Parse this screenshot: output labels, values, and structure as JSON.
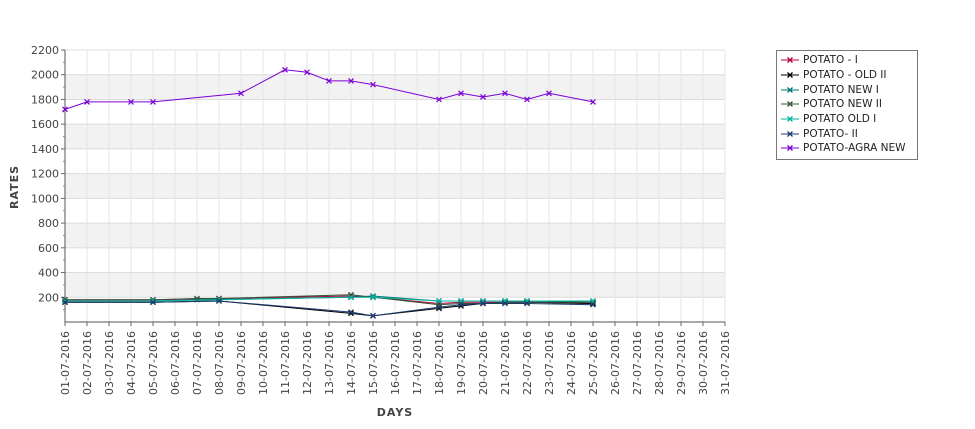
{
  "chart_data": {
    "type": "line",
    "xlabel": "DAYS",
    "ylabel": "RATES",
    "ylim": [
      0,
      2200
    ],
    "yticks": [
      200,
      400,
      600,
      800,
      1000,
      1200,
      1400,
      1600,
      1800,
      2000,
      2200
    ],
    "grid": true,
    "legend_position": "right",
    "categories": [
      "01-07-2016",
      "02-07-2016",
      "03-07-2016",
      "04-07-2016",
      "05-07-2016",
      "06-07-2016",
      "07-07-2016",
      "08-07-2016",
      "09-07-2016",
      "10-07-2016",
      "11-07-2016",
      "12-07-2016",
      "13-07-2016",
      "14-07-2016",
      "15-07-2016",
      "16-07-2016",
      "17-07-2016",
      "18-07-2016",
      "19-07-2016",
      "20-07-2016",
      "21-07-2016",
      "22-07-2016",
      "23-07-2016",
      "24-07-2016",
      "25-07-2016",
      "26-07-2016",
      "27-07-2016",
      "28-07-2016",
      "29-07-2016",
      "30-07-2016",
      "31-07-2016"
    ],
    "series": [
      {
        "name": "POTATO - I",
        "color": "#b3003c",
        "points": [
          [
            "01-07-2016",
            180
          ],
          [
            "05-07-2016",
            180
          ],
          [
            "08-07-2016",
            190
          ],
          [
            "14-07-2016",
            210
          ],
          [
            "15-07-2016",
            200
          ],
          [
            "18-07-2016",
            150
          ],
          [
            "19-07-2016",
            160
          ],
          [
            "20-07-2016",
            160
          ],
          [
            "21-07-2016",
            160
          ],
          [
            "22-07-2016",
            160
          ],
          [
            "25-07-2016",
            150
          ]
        ]
      },
      {
        "name": "POTATO - OLD II",
        "color": "#000000",
        "points": [
          [
            "01-07-2016",
            160
          ],
          [
            "05-07-2016",
            160
          ],
          [
            "08-07-2016",
            170
          ],
          [
            "14-07-2016",
            70
          ],
          [
            "15-07-2016",
            50
          ],
          [
            "18-07-2016",
            110
          ],
          [
            "19-07-2016",
            130
          ],
          [
            "20-07-2016",
            150
          ],
          [
            "21-07-2016",
            160
          ],
          [
            "22-07-2016",
            160
          ],
          [
            "25-07-2016",
            150
          ]
        ]
      },
      {
        "name": "POTATO NEW I",
        "color": "#007575",
        "points": [
          [
            "01-07-2016",
            170
          ],
          [
            "05-07-2016",
            170
          ],
          [
            "07-07-2016",
            180
          ],
          [
            "14-07-2016",
            200
          ],
          [
            "15-07-2016",
            210
          ],
          [
            "18-07-2016",
            170
          ],
          [
            "19-07-2016",
            170
          ],
          [
            "20-07-2016",
            170
          ],
          [
            "21-07-2016",
            170
          ],
          [
            "22-07-2016",
            170
          ],
          [
            "25-07-2016",
            160
          ]
        ]
      },
      {
        "name": "POTATO NEW II",
        "color": "#335533",
        "points": [
          [
            "01-07-2016",
            180
          ],
          [
            "05-07-2016",
            180
          ],
          [
            "07-07-2016",
            190
          ],
          [
            "08-07-2016",
            190
          ],
          [
            "14-07-2016",
            220
          ],
          [
            "15-07-2016",
            200
          ],
          [
            "18-07-2016",
            140
          ],
          [
            "19-07-2016",
            150
          ],
          [
            "20-07-2016",
            150
          ],
          [
            "21-07-2016",
            160
          ],
          [
            "22-07-2016",
            160
          ],
          [
            "25-07-2016",
            160
          ]
        ]
      },
      {
        "name": "POTATO OLD I",
        "color": "#00b3a0",
        "points": [
          [
            "01-07-2016",
            170
          ],
          [
            "05-07-2016",
            170
          ],
          [
            "08-07-2016",
            180
          ],
          [
            "14-07-2016",
            200
          ],
          [
            "15-07-2016",
            200
          ],
          [
            "18-07-2016",
            170
          ],
          [
            "19-07-2016",
            170
          ],
          [
            "20-07-2016",
            170
          ],
          [
            "21-07-2016",
            170
          ],
          [
            "22-07-2016",
            170
          ],
          [
            "25-07-2016",
            170
          ]
        ]
      },
      {
        "name": "POTATO- II",
        "color": "#1a3a6e",
        "points": [
          [
            "01-07-2016",
            160
          ],
          [
            "05-07-2016",
            160
          ],
          [
            "08-07-2016",
            170
          ],
          [
            "14-07-2016",
            80
          ],
          [
            "15-07-2016",
            50
          ],
          [
            "18-07-2016",
            120
          ],
          [
            "19-07-2016",
            140
          ],
          [
            "20-07-2016",
            150
          ],
          [
            "21-07-2016",
            150
          ],
          [
            "22-07-2016",
            150
          ],
          [
            "25-07-2016",
            140
          ]
        ]
      },
      {
        "name": "POTATO-AGRA NEW",
        "color": "#7b00d6",
        "points": [
          [
            "01-07-2016",
            1720
          ],
          [
            "02-07-2016",
            1780
          ],
          [
            "04-07-2016",
            1780
          ],
          [
            "05-07-2016",
            1780
          ],
          [
            "09-07-2016",
            1850
          ],
          [
            "11-07-2016",
            2040
          ],
          [
            "12-07-2016",
            2020
          ],
          [
            "13-07-2016",
            1950
          ],
          [
            "14-07-2016",
            1950
          ],
          [
            "15-07-2016",
            1920
          ],
          [
            "18-07-2016",
            1800
          ],
          [
            "19-07-2016",
            1850
          ],
          [
            "20-07-2016",
            1820
          ],
          [
            "21-07-2016",
            1850
          ],
          [
            "22-07-2016",
            1800
          ],
          [
            "23-07-2016",
            1850
          ],
          [
            "25-07-2016",
            1780
          ]
        ]
      }
    ]
  }
}
